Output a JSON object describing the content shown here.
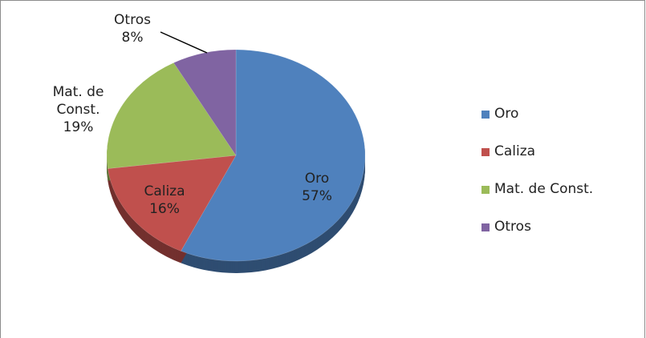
{
  "chart_data": {
    "type": "pie",
    "categories": [
      "Oro",
      "Caliza",
      "Mat. de Const.",
      "Otros"
    ],
    "values": [
      57,
      16,
      19,
      8
    ],
    "value_labels": [
      "57%",
      "16%",
      "19%",
      "8%"
    ],
    "colors": [
      "#4f81bd",
      "#c0504d",
      "#9bbb59",
      "#8064a2"
    ],
    "legend": "right"
  }
}
